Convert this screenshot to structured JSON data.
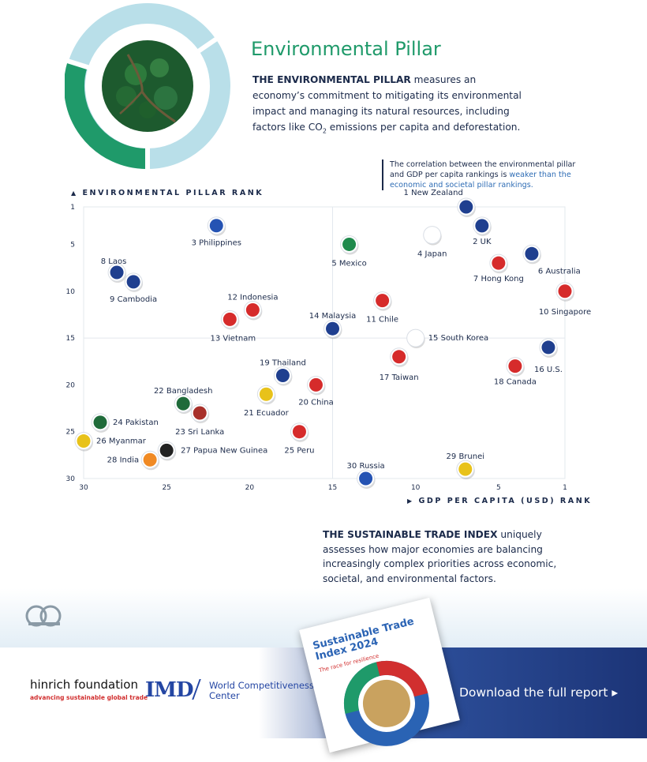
{
  "header": {
    "title": "Environmental Pillar",
    "desc_lead": "THE ENVIRONMENTAL PILLAR",
    "desc_rest": " measures an economy’s commitment to mitigating its environmental impact and managing its natural resources, including factors like CO",
    "desc_sub": "2",
    "desc_tail": " emissions per capita and deforestation."
  },
  "note": {
    "text_a": "The correlation between the environmental pillar and GDP per capita rankings is ",
    "text_highlight": "weaker than the economic and societal pillar rankings."
  },
  "chart_data": {
    "type": "scatter",
    "ylabel": "ENVIRONMENTAL PILLAR RANK",
    "xlabel": "GDP PER CAPITA (USD) RANK",
    "xlim": [
      30,
      1
    ],
    "ylim": [
      30,
      1
    ],
    "x_ticks": [
      "30",
      "25",
      "20",
      "15",
      "10",
      "5",
      "1"
    ],
    "y_ticks": [
      "1",
      "5",
      "10",
      "15",
      "20",
      "25",
      "30"
    ],
    "points": [
      {
        "label": "1 New Zealand",
        "x": 6,
        "y": 1,
        "flag": "new-zealand",
        "color": "#1f3f8f"
      },
      {
        "label": "2 UK",
        "x": 6,
        "y": 2,
        "flag": "uk",
        "color": "#1f3f8f"
      },
      {
        "label": "3 Philippines",
        "x": 22,
        "y": 3,
        "flag": "philippines",
        "color": "#2553b3"
      },
      {
        "label": "4 Japan",
        "x": 9,
        "y": 4,
        "flag": "japan",
        "color": "#ffffff"
      },
      {
        "label": "5 Mexico",
        "x": 14,
        "y": 5,
        "flag": "mexico",
        "color": "#1f8a4c"
      },
      {
        "label": "6 Australia",
        "x": 3,
        "y": 6,
        "flag": "australia",
        "color": "#1f3f8f"
      },
      {
        "label": "7 Hong Kong",
        "x": 5,
        "y": 7,
        "flag": "hong-kong",
        "color": "#d62b2b"
      },
      {
        "label": "8 Laos",
        "x": 28,
        "y": 8,
        "flag": "laos",
        "color": "#1f3f8f"
      },
      {
        "label": "9 Cambodia",
        "x": 27,
        "y": 9,
        "flag": "cambodia",
        "color": "#1f3f8f"
      },
      {
        "label": "10 Singapore",
        "x": 1,
        "y": 10,
        "flag": "singapore",
        "color": "#d62b2b"
      },
      {
        "label": "11 Chile",
        "x": 12,
        "y": 11,
        "flag": "chile",
        "color": "#d62b2b"
      },
      {
        "label": "12 Indonesia",
        "x": 20,
        "y": 12,
        "flag": "indonesia",
        "color": "#d62b2b"
      },
      {
        "label": "13 Vietnam",
        "x": 21,
        "y": 13,
        "flag": "vietnam",
        "color": "#d62b2b"
      },
      {
        "label": "14 Malaysia",
        "x": 15,
        "y": 14,
        "flag": "malaysia",
        "color": "#1f3f8f"
      },
      {
        "label": "15 South Korea",
        "x": 10,
        "y": 15,
        "flag": "south-korea",
        "color": "#ffffff"
      },
      {
        "label": "16 U.S.",
        "x": 2,
        "y": 16,
        "flag": "us",
        "color": "#1f3f8f"
      },
      {
        "label": "17 Taiwan",
        "x": 11,
        "y": 17,
        "flag": "taiwan",
        "color": "#d62b2b"
      },
      {
        "label": "18 Canada",
        "x": 4,
        "y": 18,
        "flag": "canada",
        "color": "#d62b2b"
      },
      {
        "label": "19 Thailand",
        "x": 18,
        "y": 19,
        "flag": "thailand",
        "color": "#1f3f8f"
      },
      {
        "label": "20 China",
        "x": 16,
        "y": 20,
        "flag": "china",
        "color": "#d62b2b"
      },
      {
        "label": "21 Ecuador",
        "x": 19,
        "y": 21,
        "flag": "ecuador",
        "color": "#e8c21a"
      },
      {
        "label": "22 Bangladesh",
        "x": 24,
        "y": 22,
        "flag": "bangladesh",
        "color": "#1f6b3a"
      },
      {
        "label": "23 Sri Lanka",
        "x": 23,
        "y": 23,
        "flag": "sri-lanka",
        "color": "#a8302a"
      },
      {
        "label": "24 Pakistan",
        "x": 29,
        "y": 24,
        "flag": "pakistan",
        "color": "#1f6b3a"
      },
      {
        "label": "25 Peru",
        "x": 17,
        "y": 25,
        "flag": "peru",
        "color": "#d62b2b"
      },
      {
        "label": "26 Myanmar",
        "x": 30,
        "y": 26,
        "flag": "myanmar",
        "color": "#e8c21a"
      },
      {
        "label": "27 Papua New Guinea",
        "x": 25,
        "y": 27,
        "flag": "png",
        "color": "#222222"
      },
      {
        "label": "28 India",
        "x": 26,
        "y": 28,
        "flag": "india",
        "color": "#f08a24"
      },
      {
        "label": "29 Brunei",
        "x": 7,
        "y": 29,
        "flag": "brunei",
        "color": "#e8c21a"
      },
      {
        "label": "30 Russia",
        "x": 13,
        "y": 30,
        "flag": "russia",
        "color": "#2553b3"
      }
    ]
  },
  "blurb": {
    "lead": "THE SUSTAINABLE TRADE INDEX",
    "rest": " uniquely assesses how major economies are balancing increasingly complex priorities across economic, societal, and environmental factors."
  },
  "footer": {
    "hinrich": "hinrich foundation",
    "hinrich_tag": "advancing sustainable global trade",
    "imd": "IMD",
    "wcc": "World Competitiveness Center",
    "report_title": "Sustainable Trade Index 2024",
    "report_tag": "The race for resilience",
    "download": "Download the full report ▸"
  },
  "colors": {
    "accent_green": "#1f9a6a",
    "navy": "#1b2a4a",
    "highlight_blue": "#2f6db5",
    "ring_light": "#b9dfe9"
  },
  "icons": [
    "forest-photo",
    "up-triangle-icon",
    "right-triangle-icon",
    "hinrich-cloud-icon",
    "chevron-right-icon"
  ]
}
